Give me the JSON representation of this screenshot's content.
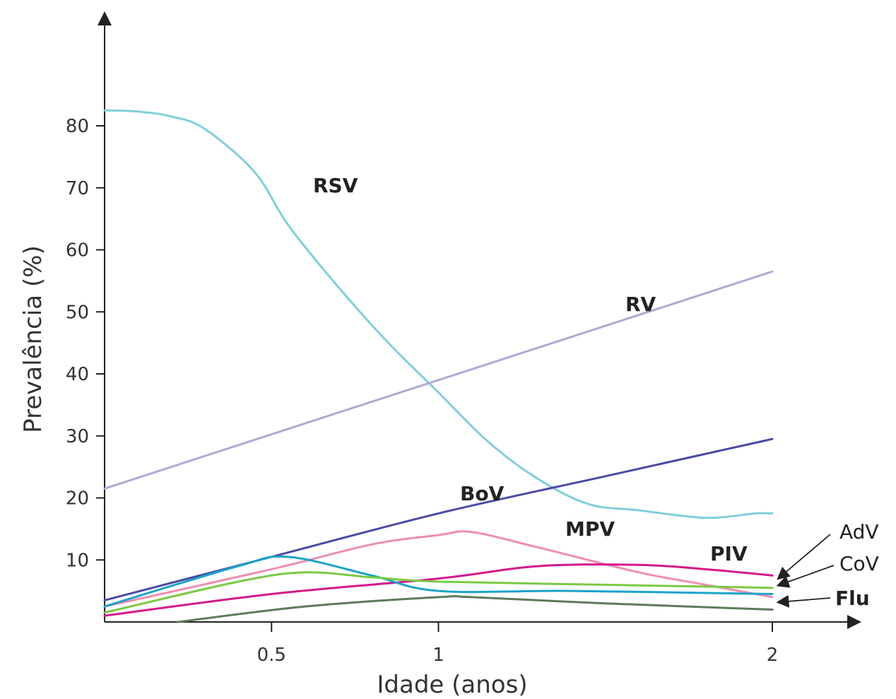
{
  "chart_data": {
    "type": "line",
    "xlabel": "Idade (anos)",
    "ylabel": "Prevalência (%)",
    "xlim": [
      0,
      2.25
    ],
    "ylim": [
      0,
      95
    ],
    "x_ticks": [
      {
        "value": 0.5,
        "label": "0.5"
      },
      {
        "value": 1,
        "label": "1"
      },
      {
        "value": 2,
        "label": "2"
      }
    ],
    "y_ticks": [
      {
        "value": 10,
        "label": "10"
      },
      {
        "value": 20,
        "label": "20"
      },
      {
        "value": 30,
        "label": "30"
      },
      {
        "value": 40,
        "label": "40"
      },
      {
        "value": 50,
        "label": "50"
      },
      {
        "value": 60,
        "label": "60"
      },
      {
        "value": 70,
        "label": "70"
      },
      {
        "value": 80,
        "label": "80"
      }
    ],
    "grid": false,
    "series": [
      {
        "name": "RSV",
        "color": "#7fcfdb",
        "x": [
          0.0,
          0.1,
          0.2,
          0.3,
          0.45,
          0.55,
          0.7,
          0.85,
          1.0,
          1.15,
          1.3,
          1.45,
          1.6,
          1.8,
          1.95,
          2.0
        ],
        "y": [
          82.5,
          82.3,
          81.5,
          79.5,
          72.5,
          64,
          54,
          45,
          37,
          29,
          23,
          19,
          18,
          16.8,
          17.5,
          17.5
        ]
      },
      {
        "name": "RV",
        "color": "#b3a6d6",
        "x": [
          0.0,
          2.0
        ],
        "y": [
          21.5,
          56.5
        ]
      },
      {
        "name": "BoV",
        "color": "#4a4aa8",
        "x": [
          0.0,
          0.5,
          1.0,
          1.5,
          2.0
        ],
        "y": [
          3.5,
          10.5,
          17.5,
          23.5,
          29.5
        ]
      },
      {
        "name": "MPV",
        "color": "#ef8db0",
        "x": [
          0.0,
          0.5,
          0.8,
          1.0,
          1.1,
          1.3,
          1.6,
          1.8,
          2.0
        ],
        "y": [
          2.5,
          8.5,
          12.5,
          14,
          14.5,
          12,
          8,
          6,
          4
        ]
      },
      {
        "name": "PIV",
        "color": "#d6178a",
        "x": [
          0.0,
          0.5,
          1.0,
          1.3,
          1.6,
          1.8,
          2.0
        ],
        "y": [
          1.0,
          4.5,
          7.0,
          9.0,
          9.2,
          8.5,
          7.5
        ]
      },
      {
        "name": "AdV",
        "color": "#1aa3c9",
        "x": [
          0.0,
          0.4,
          0.55,
          0.8,
          1.0,
          1.4,
          2.0
        ],
        "y": [
          2.5,
          9.0,
          10.5,
          7.5,
          5.0,
          5.0,
          4.5
        ]
      },
      {
        "name": "CoV",
        "color": "#7ac943",
        "x": [
          0.0,
          0.4,
          0.6,
          0.8,
          1.0,
          1.5,
          2.0
        ],
        "y": [
          1.5,
          6.5,
          8.0,
          7.2,
          6.5,
          6.0,
          5.5
        ]
      },
      {
        "name": "Flu",
        "color": "#5e7a5a",
        "x": [
          0.22,
          0.6,
          1.0,
          1.1,
          1.5,
          2.0
        ],
        "y": [
          0.0,
          2.5,
          4.0,
          4.0,
          3.0,
          2.0
        ]
      }
    ],
    "annotations": [
      {
        "text": "RSV",
        "series": "RSV"
      },
      {
        "text": "RV",
        "series": "RV"
      },
      {
        "text": "BoV",
        "series": "BoV"
      },
      {
        "text": "MPV",
        "series": "MPV"
      },
      {
        "text": "PIV",
        "series": "PIV"
      },
      {
        "text": "AdV",
        "series": "AdV"
      },
      {
        "text": "CoV",
        "series": "CoV"
      },
      {
        "text": "Flu",
        "series": "Flu"
      }
    ]
  }
}
